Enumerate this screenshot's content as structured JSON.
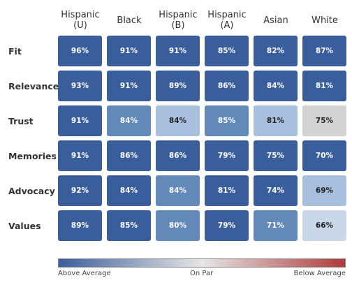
{
  "chart_data": {
    "type": "heatmap",
    "columns": [
      "Hispanic\n(U)",
      "Black",
      "Hispanic\n(B)",
      "Hispanic\n(A)",
      "Asian",
      "White"
    ],
    "rows": [
      "Fit",
      "Relevance",
      "Trust",
      "Memories",
      "Advocacy",
      "Values"
    ],
    "values": [
      [
        96,
        91,
        91,
        85,
        82,
        87
      ],
      [
        93,
        91,
        89,
        86,
        84,
        81
      ],
      [
        91,
        84,
        84,
        85,
        81,
        75
      ],
      [
        91,
        86,
        86,
        79,
        75,
        70
      ],
      [
        92,
        84,
        84,
        81,
        74,
        69
      ],
      [
        89,
        85,
        80,
        79,
        71,
        66
      ]
    ],
    "cell_colors": [
      [
        "#3a5e9c",
        "#3a5e9c",
        "#3a5e9c",
        "#3a5e9c",
        "#3a5e9c",
        "#3a5e9c"
      ],
      [
        "#3a5e9c",
        "#3a5e9c",
        "#3a5e9c",
        "#3a5e9c",
        "#3a5e9c",
        "#3a5e9c"
      ],
      [
        "#3a5e9c",
        "#6389b9",
        "#a8c0dd",
        "#6389b9",
        "#a8c0dd",
        "#d3d3d3"
      ],
      [
        "#3a5e9c",
        "#3a5e9c",
        "#3a5e9c",
        "#3a5e9c",
        "#3a5e9c",
        "#3a5e9c"
      ],
      [
        "#3a5e9c",
        "#3a5e9c",
        "#6389b9",
        "#3a5e9c",
        "#3a5e9c",
        "#a8c0dd"
      ],
      [
        "#3a5e9c",
        "#3a5e9c",
        "#6389b9",
        "#3a5e9c",
        "#6389b9",
        "#c9d7e9"
      ]
    ],
    "value_suffix": "%",
    "legend": {
      "colors": [
        "#3a5e9c",
        "#e6e6e6",
        "#b03a3a"
      ],
      "labels": [
        "Above Average",
        "On Par",
        "Below Average"
      ],
      "placement": "bottom"
    }
  }
}
